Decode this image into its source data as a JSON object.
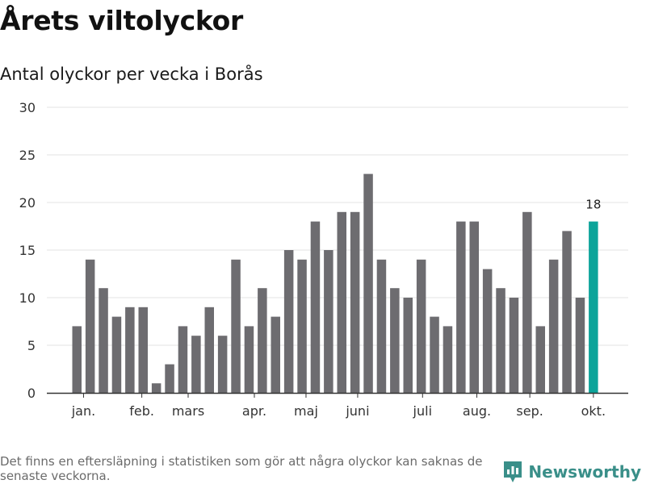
{
  "title": "Årets viltolyckor",
  "subtitle": "Antal olyckor per vecka i Borås",
  "footnote": "Det finns en eftersläpning i statistiken som gör att några olyckor kan saknas de senaste veckorna.",
  "brand": {
    "name": "Newsworthy",
    "icon": "newsworthy-logo-icon"
  },
  "colors": {
    "bar": "#6d6c70",
    "highlight": "#0ca49a",
    "grid": "#e3e3e3",
    "axis": "#333333",
    "brand": "#3a8f89"
  },
  "chart_data": {
    "type": "bar",
    "title": "Årets viltolyckor",
    "subtitle": "Antal olyckor per vecka i Borås",
    "xlabel": "",
    "ylabel": "",
    "ylim": [
      0,
      30
    ],
    "yticks": [
      0,
      5,
      10,
      15,
      20,
      25,
      30
    ],
    "weeks": [
      1,
      2,
      3,
      4,
      5,
      6,
      7,
      8,
      9,
      10,
      11,
      12,
      13,
      14,
      15,
      16,
      17,
      18,
      19,
      20,
      21,
      22,
      23,
      24,
      25,
      26,
      27,
      28,
      29,
      30,
      31,
      32,
      33,
      34,
      35,
      36,
      37,
      38,
      39,
      40
    ],
    "values": [
      7,
      14,
      11,
      8,
      9,
      9,
      1,
      3,
      7,
      6,
      9,
      6,
      14,
      7,
      11,
      8,
      15,
      14,
      18,
      15,
      19,
      19,
      23,
      14,
      11,
      10,
      14,
      8,
      7,
      18,
      18,
      13,
      11,
      10,
      19,
      7,
      14,
      17,
      10,
      18
    ],
    "highlight_index": 39,
    "highlight_label": "18",
    "month_labels": [
      {
        "label": "jan.",
        "week": 1.5
      },
      {
        "label": "feb.",
        "week": 5.9
      },
      {
        "label": "mars",
        "week": 9.4
      },
      {
        "label": "apr.",
        "week": 14.4
      },
      {
        "label": "maj",
        "week": 18.3
      },
      {
        "label": "juni",
        "week": 22.2
      },
      {
        "label": "juli",
        "week": 27.1
      },
      {
        "label": "aug.",
        "week": 31.2
      },
      {
        "label": "sep.",
        "week": 35.2
      },
      {
        "label": "okt.",
        "week": 40.0
      }
    ],
    "grid": true,
    "legend": "none"
  }
}
